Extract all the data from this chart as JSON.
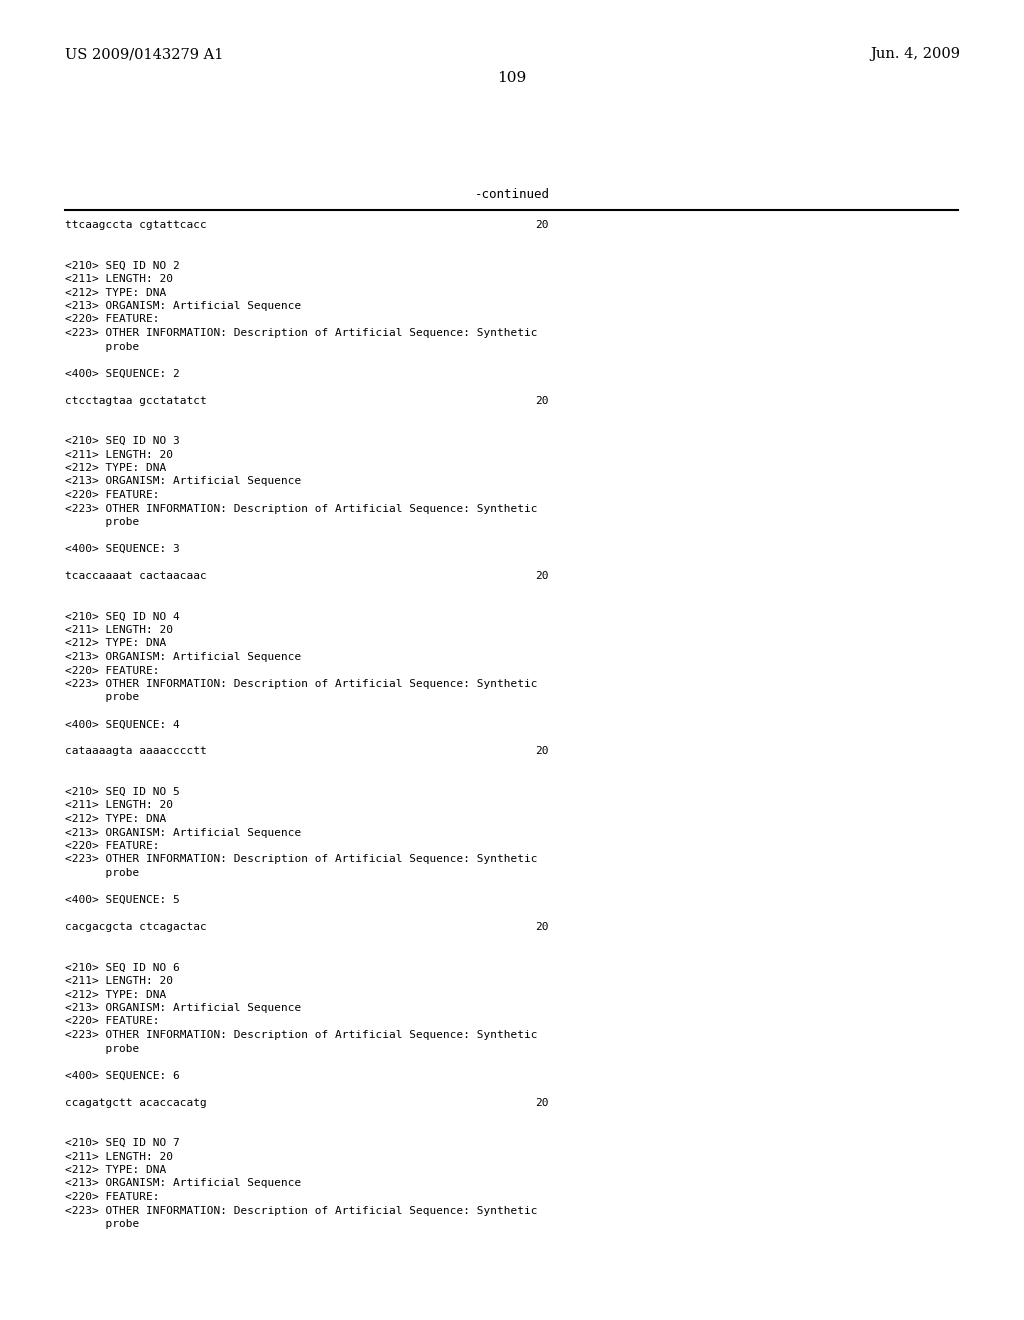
{
  "background_color": "#ffffff",
  "header_left": "US 2009/0143279 A1",
  "header_right": "Jun. 4, 2009",
  "page_number": "109",
  "continued_label": "-continued",
  "monospace_font_size": 8.0,
  "header_font_size": 10.5,
  "page_num_font_size": 11,
  "content_lines": [
    {
      "text": "ttcaagccta cgtattcacc",
      "num": "20"
    },
    {
      "text": "",
      "num": ""
    },
    {
      "text": "",
      "num": ""
    },
    {
      "text": "<210> SEQ ID NO 2",
      "num": ""
    },
    {
      "text": "<211> LENGTH: 20",
      "num": ""
    },
    {
      "text": "<212> TYPE: DNA",
      "num": ""
    },
    {
      "text": "<213> ORGANISM: Artificial Sequence",
      "num": ""
    },
    {
      "text": "<220> FEATURE:",
      "num": ""
    },
    {
      "text": "<223> OTHER INFORMATION: Description of Artificial Sequence: Synthetic",
      "num": ""
    },
    {
      "text": "      probe",
      "num": ""
    },
    {
      "text": "",
      "num": ""
    },
    {
      "text": "<400> SEQUENCE: 2",
      "num": ""
    },
    {
      "text": "",
      "num": ""
    },
    {
      "text": "ctcctagtaa gcctatatct",
      "num": "20"
    },
    {
      "text": "",
      "num": ""
    },
    {
      "text": "",
      "num": ""
    },
    {
      "text": "<210> SEQ ID NO 3",
      "num": ""
    },
    {
      "text": "<211> LENGTH: 20",
      "num": ""
    },
    {
      "text": "<212> TYPE: DNA",
      "num": ""
    },
    {
      "text": "<213> ORGANISM: Artificial Sequence",
      "num": ""
    },
    {
      "text": "<220> FEATURE:",
      "num": ""
    },
    {
      "text": "<223> OTHER INFORMATION: Description of Artificial Sequence: Synthetic",
      "num": ""
    },
    {
      "text": "      probe",
      "num": ""
    },
    {
      "text": "",
      "num": ""
    },
    {
      "text": "<400> SEQUENCE: 3",
      "num": ""
    },
    {
      "text": "",
      "num": ""
    },
    {
      "text": "tcaccaaaat cactaacaac",
      "num": "20"
    },
    {
      "text": "",
      "num": ""
    },
    {
      "text": "",
      "num": ""
    },
    {
      "text": "<210> SEQ ID NO 4",
      "num": ""
    },
    {
      "text": "<211> LENGTH: 20",
      "num": ""
    },
    {
      "text": "<212> TYPE: DNA",
      "num": ""
    },
    {
      "text": "<213> ORGANISM: Artificial Sequence",
      "num": ""
    },
    {
      "text": "<220> FEATURE:",
      "num": ""
    },
    {
      "text": "<223> OTHER INFORMATION: Description of Artificial Sequence: Synthetic",
      "num": ""
    },
    {
      "text": "      probe",
      "num": ""
    },
    {
      "text": "",
      "num": ""
    },
    {
      "text": "<400> SEQUENCE: 4",
      "num": ""
    },
    {
      "text": "",
      "num": ""
    },
    {
      "text": "cataaaagta aaaacccctt",
      "num": "20"
    },
    {
      "text": "",
      "num": ""
    },
    {
      "text": "",
      "num": ""
    },
    {
      "text": "<210> SEQ ID NO 5",
      "num": ""
    },
    {
      "text": "<211> LENGTH: 20",
      "num": ""
    },
    {
      "text": "<212> TYPE: DNA",
      "num": ""
    },
    {
      "text": "<213> ORGANISM: Artificial Sequence",
      "num": ""
    },
    {
      "text": "<220> FEATURE:",
      "num": ""
    },
    {
      "text": "<223> OTHER INFORMATION: Description of Artificial Sequence: Synthetic",
      "num": ""
    },
    {
      "text": "      probe",
      "num": ""
    },
    {
      "text": "",
      "num": ""
    },
    {
      "text": "<400> SEQUENCE: 5",
      "num": ""
    },
    {
      "text": "",
      "num": ""
    },
    {
      "text": "cacgacgcta ctcagactac",
      "num": "20"
    },
    {
      "text": "",
      "num": ""
    },
    {
      "text": "",
      "num": ""
    },
    {
      "text": "<210> SEQ ID NO 6",
      "num": ""
    },
    {
      "text": "<211> LENGTH: 20",
      "num": ""
    },
    {
      "text": "<212> TYPE: DNA",
      "num": ""
    },
    {
      "text": "<213> ORGANISM: Artificial Sequence",
      "num": ""
    },
    {
      "text": "<220> FEATURE:",
      "num": ""
    },
    {
      "text": "<223> OTHER INFORMATION: Description of Artificial Sequence: Synthetic",
      "num": ""
    },
    {
      "text": "      probe",
      "num": ""
    },
    {
      "text": "",
      "num": ""
    },
    {
      "text": "<400> SEQUENCE: 6",
      "num": ""
    },
    {
      "text": "",
      "num": ""
    },
    {
      "text": "ccagatgctt acaccacatg",
      "num": "20"
    },
    {
      "text": "",
      "num": ""
    },
    {
      "text": "",
      "num": ""
    },
    {
      "text": "<210> SEQ ID NO 7",
      "num": ""
    },
    {
      "text": "<211> LENGTH: 20",
      "num": ""
    },
    {
      "text": "<212> TYPE: DNA",
      "num": ""
    },
    {
      "text": "<213> ORGANISM: Artificial Sequence",
      "num": ""
    },
    {
      "text": "<220> FEATURE:",
      "num": ""
    },
    {
      "text": "<223> OTHER INFORMATION: Description of Artificial Sequence: Synthetic",
      "num": ""
    },
    {
      "text": "      probe",
      "num": ""
    }
  ]
}
